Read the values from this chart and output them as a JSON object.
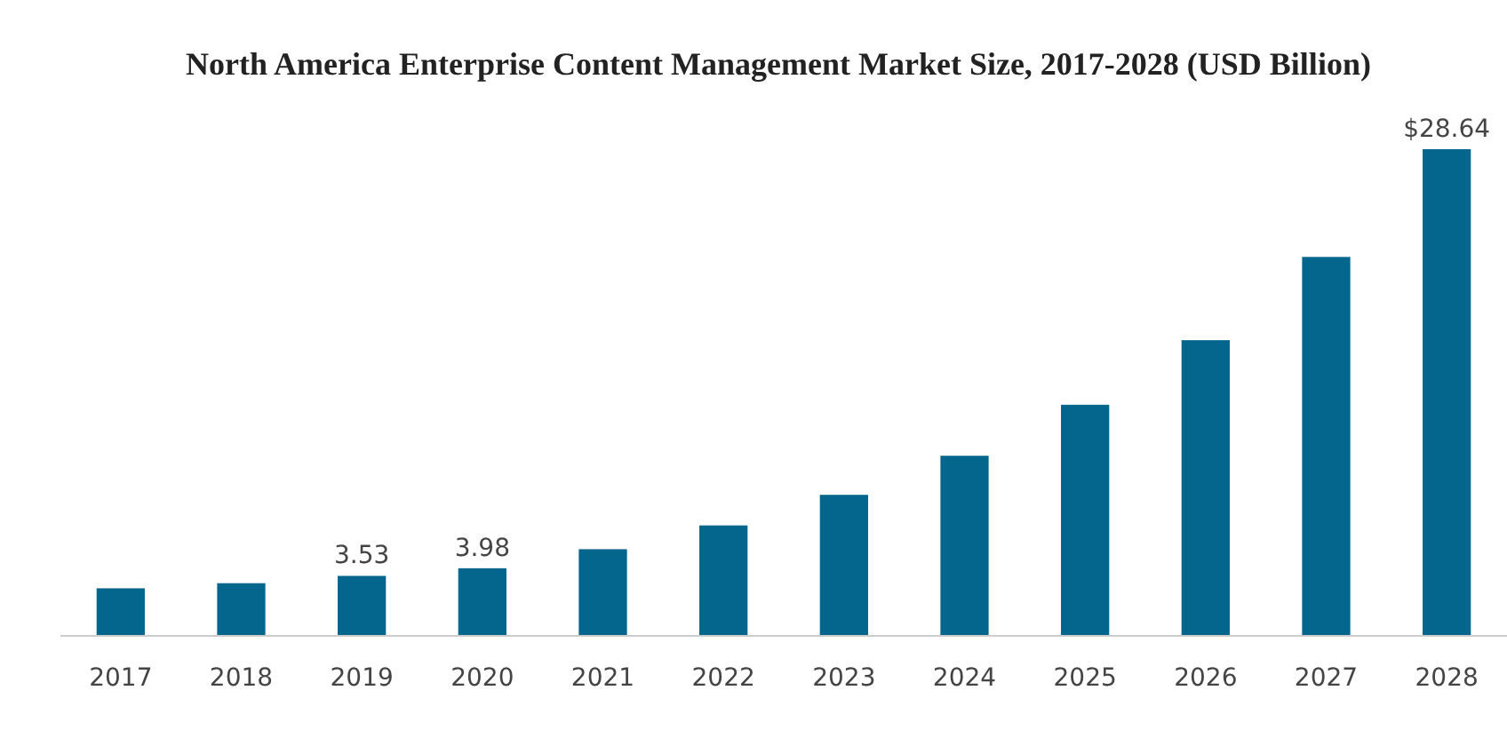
{
  "chart_data": {
    "type": "bar",
    "title": "North America Enterprise Content Management Market Size, 2017-2028 (USD Billion)",
    "categories": [
      "2017",
      "2018",
      "2019",
      "2020",
      "2021",
      "2022",
      "2023",
      "2024",
      "2025",
      "2026",
      "2027",
      "2028"
    ],
    "values": [
      2.8,
      3.1,
      3.53,
      3.98,
      5.1,
      6.5,
      8.3,
      10.6,
      13.6,
      17.4,
      22.3,
      28.64
    ],
    "value_labels": [
      null,
      null,
      "3.53",
      "3.98",
      null,
      null,
      null,
      null,
      null,
      null,
      null,
      "$28.64"
    ],
    "color": "#05668d"
  }
}
